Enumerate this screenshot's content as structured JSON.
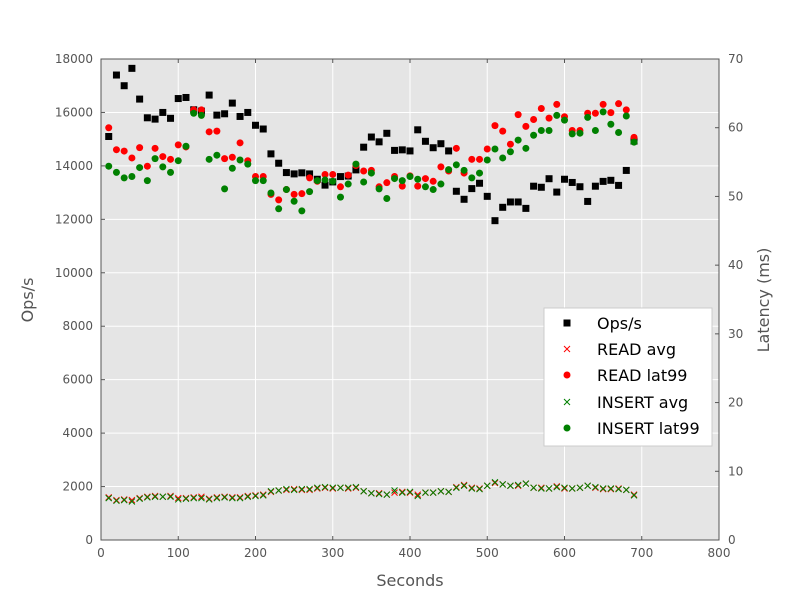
{
  "chart_data": {
    "type": "scatter",
    "xlabel": "Seconds",
    "ylabel": "Ops/s",
    "y2label": "Latency (ms)",
    "xlim": [
      0,
      800
    ],
    "ylim": [
      0,
      18000
    ],
    "y2lim": [
      0,
      70
    ],
    "x_ticks": [
      "0",
      "100",
      "200",
      "300",
      "400",
      "500",
      "600",
      "700",
      "800"
    ],
    "y_ticks": [
      "0",
      "2000",
      "4000",
      "6000",
      "8000",
      "10000",
      "12000",
      "14000",
      "16000",
      "18000"
    ],
    "y2_ticks": [
      "0",
      "10",
      "20",
      "30",
      "40",
      "50",
      "60",
      "70"
    ],
    "grid": true,
    "legend_position": "center-right",
    "x": [
      10,
      20,
      30,
      40,
      50,
      60,
      70,
      80,
      90,
      100,
      110,
      120,
      130,
      140,
      150,
      160,
      170,
      180,
      190,
      200,
      210,
      220,
      230,
      240,
      250,
      260,
      270,
      280,
      290,
      300,
      310,
      320,
      330,
      340,
      350,
      360,
      370,
      380,
      390,
      400,
      410,
      420,
      430,
      440,
      450,
      460,
      470,
      480,
      490,
      500,
      510,
      520,
      530,
      540,
      550,
      560,
      570,
      580,
      590,
      600,
      610,
      620,
      630,
      640,
      650,
      660,
      670,
      680,
      690
    ],
    "series": [
      {
        "name": "Ops/s",
        "axis": "left",
        "marker": "square",
        "color": "#000000",
        "values": [
          15100,
          17400,
          17000,
          17650,
          16500,
          15800,
          15750,
          16000,
          15780,
          16520,
          16560,
          16100,
          16050,
          16650,
          15900,
          15950,
          16350,
          15850,
          16000,
          15520,
          15380,
          14450,
          14100,
          13750,
          13700,
          13740,
          13700,
          13500,
          13280,
          13400,
          13600,
          13620,
          13850,
          14700,
          15080,
          14900,
          15220,
          14580,
          14600,
          14560,
          15350,
          14920,
          14680,
          14830,
          14560,
          13050,
          12750,
          13150,
          13350,
          12860,
          11950,
          12450,
          12650,
          12650,
          12410,
          13240,
          13200,
          13520,
          13020,
          13500,
          13380,
          13220,
          12670,
          13240,
          13420,
          13460,
          13270,
          13830,
          14930
        ]
      },
      {
        "name": "READ avg",
        "axis": "right",
        "marker": "x",
        "color": "#ff0000",
        "values": [
          6.2,
          5.8,
          5.9,
          5.8,
          6.1,
          6.3,
          6.4,
          6.3,
          6.4,
          6.1,
          6.1,
          6.2,
          6.3,
          6.0,
          6.2,
          6.3,
          6.2,
          6.2,
          6.4,
          6.5,
          6.6,
          7.0,
          7.2,
          7.3,
          7.4,
          7.3,
          7.3,
          7.5,
          7.6,
          7.5,
          7.6,
          7.5,
          7.6,
          7.1,
          6.8,
          6.8,
          6.6,
          6.9,
          7.0,
          6.9,
          6.6,
          6.9,
          6.9,
          7.1,
          7.0,
          7.7,
          8.0,
          7.6,
          7.5,
          7.9,
          8.3,
          8.1,
          7.9,
          7.9,
          8.2,
          7.6,
          7.6,
          7.5,
          7.8,
          7.5,
          7.5,
          7.6,
          7.9,
          7.6,
          7.4,
          7.4,
          7.5,
          7.3,
          6.6
        ]
      },
      {
        "name": "READ lat99",
        "axis": "right",
        "marker": "circle",
        "color": "#ff0000",
        "values": [
          60,
          56.8,
          56.6,
          55.6,
          57.1,
          54.4,
          57,
          55.8,
          55.4,
          57.5,
          57.2,
          62.6,
          62.6,
          59.4,
          59.5,
          55.5,
          55.7,
          57.8,
          55.2,
          52.9,
          52.9,
          50.3,
          49.5,
          51,
          50.3,
          50.4,
          52.7,
          52.2,
          53.2,
          53.2,
          51.4,
          53.1,
          54.5,
          53.7,
          53.8,
          51.4,
          52,
          52.9,
          51.5,
          53,
          51.5,
          52.6,
          52.2,
          54.3,
          53.7,
          57,
          53.4,
          55.4,
          55.4,
          56.9,
          60.3,
          59.5,
          57.6,
          61.9,
          60.2,
          61.2,
          62.8,
          61.4,
          63.4,
          61.6,
          59.6,
          59.6,
          62.1,
          62.1,
          63.4,
          62.2,
          63.5,
          62.6,
          58.6
        ]
      },
      {
        "name": "INSERT avg",
        "axis": "right",
        "marker": "x",
        "color": "#008000",
        "values": [
          6.1,
          5.7,
          5.8,
          5.6,
          6.0,
          6.2,
          6.3,
          6.3,
          6.3,
          5.9,
          6.0,
          6.1,
          6.1,
          5.9,
          6.1,
          6.2,
          6.1,
          6.1,
          6.3,
          6.4,
          6.5,
          7.1,
          7.2,
          7.4,
          7.3,
          7.4,
          7.4,
          7.6,
          7.7,
          7.6,
          7.6,
          7.6,
          7.7,
          7.1,
          6.8,
          6.7,
          6.6,
          7.2,
          6.9,
          7.0,
          6.4,
          6.9,
          6.9,
          7.1,
          7.0,
          7.6,
          7.9,
          7.5,
          7.4,
          7.9,
          8.4,
          8.1,
          7.9,
          8.0,
          8.2,
          7.6,
          7.5,
          7.5,
          7.7,
          7.6,
          7.5,
          7.6,
          7.9,
          7.7,
          7.5,
          7.5,
          7.4,
          7.3,
          6.5
        ]
      },
      {
        "name": "INSERT lat99",
        "axis": "right",
        "marker": "circle",
        "color": "#008000",
        "values": [
          54.4,
          53.5,
          52.7,
          52.9,
          54.2,
          52.3,
          55.5,
          54.3,
          53.5,
          55.2,
          57.3,
          62.1,
          61.8,
          55.4,
          56,
          51.1,
          54.1,
          55.3,
          54.7,
          52.3,
          52.3,
          50.5,
          48.2,
          51,
          49.3,
          47.9,
          50.7,
          52.3,
          52.4,
          52.2,
          49.9,
          51.8,
          54.7,
          52.1,
          53.4,
          51.1,
          49.7,
          52.6,
          52.3,
          52.9,
          52.5,
          51.4,
          51,
          51.8,
          53.9,
          54.6,
          53.8,
          52.7,
          53.4,
          55.3,
          56.9,
          55.6,
          56.5,
          58.2,
          57,
          58.9,
          59.6,
          59.6,
          61.8,
          61.1,
          59.1,
          59.2,
          61.5,
          59.6,
          62.3,
          60.5,
          59.3,
          61.7,
          57.9
        ]
      }
    ]
  }
}
